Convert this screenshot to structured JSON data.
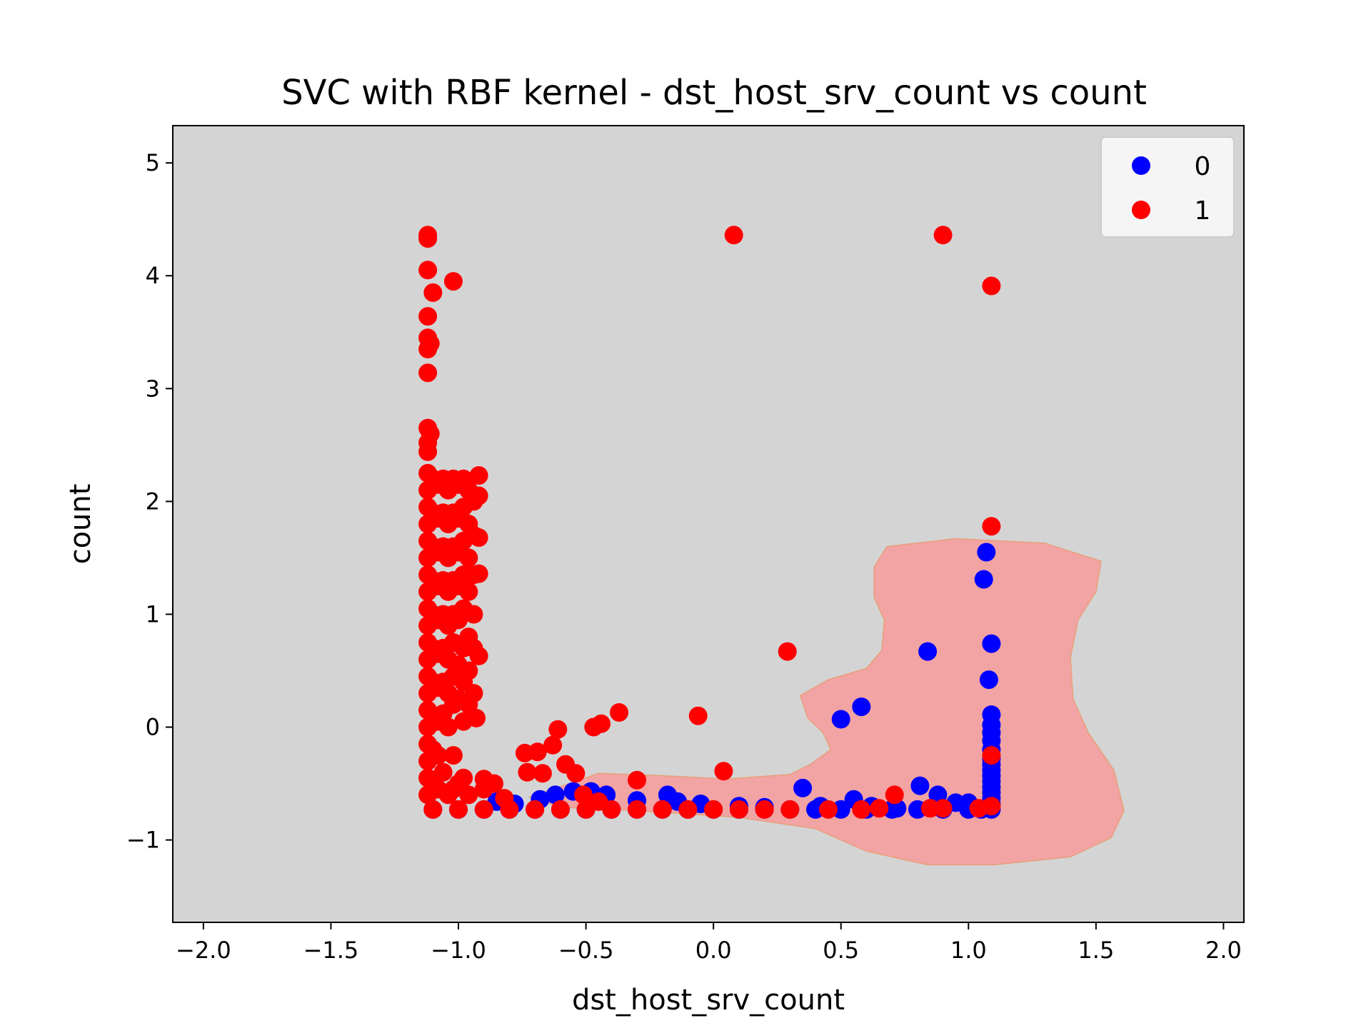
{
  "chart_data": {
    "type": "scatter",
    "title": "SVC with RBF kernel - dst_host_srv_count vs count",
    "xlabel": "dst_host_srv_count",
    "ylabel": "count",
    "xlim": [
      -2.12,
      2.08
    ],
    "ylim": [
      -1.73,
      5.33
    ],
    "xticks": [
      -2.0,
      -1.5,
      -1.0,
      -0.5,
      0.0,
      0.5,
      1.0,
      1.5,
      2.0
    ],
    "xtick_labels": [
      "−2.0",
      "−1.5",
      "−1.0",
      "−0.5",
      "0.0",
      "0.5",
      "1.0",
      "1.5",
      "2.0"
    ],
    "yticks": [
      -1,
      0,
      1,
      2,
      3,
      4,
      5
    ],
    "ytick_labels": [
      "−1",
      "0",
      "1",
      "2",
      "3",
      "4",
      "5"
    ],
    "grid": false,
    "legend": "top-right",
    "colors": {
      "background": "#d4d4d4",
      "region": "#f2a3a3",
      "class0": "#0000ff",
      "class1": "#ff0000"
    },
    "decision_region": {
      "label": "predicted class 1",
      "polygon": [
        [
          -0.72,
          -0.62
        ],
        [
          -0.45,
          -0.41
        ],
        [
          -0.2,
          -0.43
        ],
        [
          0.05,
          -0.46
        ],
        [
          0.3,
          -0.42
        ],
        [
          0.38,
          -0.33
        ],
        [
          0.46,
          -0.2
        ],
        [
          0.43,
          -0.05
        ],
        [
          0.37,
          0.08
        ],
        [
          0.34,
          0.28
        ],
        [
          0.45,
          0.42
        ],
        [
          0.6,
          0.52
        ],
        [
          0.66,
          0.68
        ],
        [
          0.67,
          0.95
        ],
        [
          0.63,
          1.15
        ],
        [
          0.63,
          1.42
        ],
        [
          0.68,
          1.6
        ],
        [
          0.95,
          1.67
        ],
        [
          1.3,
          1.63
        ],
        [
          1.52,
          1.47
        ],
        [
          1.5,
          1.2
        ],
        [
          1.43,
          0.95
        ],
        [
          1.4,
          0.62
        ],
        [
          1.41,
          0.25
        ],
        [
          1.47,
          -0.05
        ],
        [
          1.57,
          -0.38
        ],
        [
          1.61,
          -0.74
        ],
        [
          1.56,
          -0.98
        ],
        [
          1.4,
          -1.15
        ],
        [
          1.1,
          -1.22
        ],
        [
          0.84,
          -1.22
        ],
        [
          0.6,
          -1.1
        ],
        [
          0.4,
          -0.9
        ],
        [
          0.1,
          -0.8
        ],
        [
          -0.3,
          -0.74
        ],
        [
          -0.6,
          -0.71
        ]
      ]
    },
    "series": [
      {
        "name": "0",
        "color": "#0000ff",
        "points": [
          [
            -1.1,
            -0.73
          ],
          [
            -1.0,
            -0.73
          ],
          [
            -0.9,
            -0.73
          ],
          [
            -0.8,
            -0.73
          ],
          [
            -0.7,
            -0.73
          ],
          [
            -0.6,
            -0.73
          ],
          [
            -0.5,
            -0.73
          ],
          [
            -0.4,
            -0.73
          ],
          [
            -0.3,
            -0.73
          ],
          [
            -0.2,
            -0.73
          ],
          [
            -0.1,
            -0.73
          ],
          [
            0.0,
            -0.73
          ],
          [
            0.1,
            -0.73
          ],
          [
            0.2,
            -0.73
          ],
          [
            0.3,
            -0.73
          ],
          [
            0.4,
            -0.73
          ],
          [
            0.5,
            -0.73
          ],
          [
            0.6,
            -0.73
          ],
          [
            0.7,
            -0.73
          ],
          [
            0.8,
            -0.73
          ],
          [
            0.9,
            -0.73
          ],
          [
            1.0,
            -0.73
          ],
          [
            1.05,
            -0.73
          ],
          [
            -0.85,
            -0.66
          ],
          [
            -0.78,
            -0.68
          ],
          [
            -0.68,
            -0.64
          ],
          [
            -0.62,
            -0.6
          ],
          [
            -0.55,
            -0.57
          ],
          [
            -0.48,
            -0.57
          ],
          [
            -0.42,
            -0.6
          ],
          [
            -0.3,
            -0.65
          ],
          [
            -0.18,
            -0.6
          ],
          [
            -0.14,
            -0.66
          ],
          [
            -0.05,
            -0.68
          ],
          [
            0.1,
            -0.7
          ],
          [
            0.2,
            -0.71
          ],
          [
            0.35,
            -0.54
          ],
          [
            0.42,
            -0.7
          ],
          [
            0.55,
            -0.64
          ],
          [
            0.62,
            -0.7
          ],
          [
            0.72,
            -0.72
          ],
          [
            0.81,
            -0.52
          ],
          [
            0.88,
            -0.6
          ],
          [
            0.95,
            -0.67
          ],
          [
            1.0,
            -0.67
          ],
          [
            1.09,
            -0.73
          ],
          [
            1.09,
            -0.68
          ],
          [
            1.09,
            -0.63
          ],
          [
            1.09,
            -0.58
          ],
          [
            1.09,
            -0.53
          ],
          [
            1.09,
            -0.48
          ],
          [
            1.09,
            -0.43
          ],
          [
            1.09,
            -0.38
          ],
          [
            1.09,
            -0.33
          ],
          [
            1.09,
            -0.28
          ],
          [
            1.09,
            -0.2
          ],
          [
            1.09,
            -0.12
          ],
          [
            1.09,
            -0.05
          ],
          [
            1.09,
            0.02
          ],
          [
            1.09,
            0.11
          ],
          [
            0.5,
            0.07
          ],
          [
            0.58,
            0.18
          ],
          [
            0.84,
            0.67
          ],
          [
            1.08,
            0.42
          ],
          [
            1.09,
            0.74
          ],
          [
            1.06,
            1.31
          ],
          [
            1.07,
            1.55
          ]
        ]
      },
      {
        "name": "1",
        "color": "#ff0000",
        "points": [
          [
            -1.12,
            4.36
          ],
          [
            -1.12,
            4.33
          ],
          [
            -1.12,
            4.05
          ],
          [
            -1.02,
            3.95
          ],
          [
            -1.1,
            3.85
          ],
          [
            -1.12,
            3.64
          ],
          [
            -1.12,
            3.45
          ],
          [
            -1.11,
            3.4
          ],
          [
            -1.12,
            3.35
          ],
          [
            -1.12,
            3.14
          ],
          [
            -1.12,
            2.65
          ],
          [
            -1.11,
            2.6
          ],
          [
            -1.12,
            2.52
          ],
          [
            -1.12,
            2.44
          ],
          [
            -1.12,
            2.25
          ],
          [
            -1.12,
            2.1
          ],
          [
            -1.12,
            1.95
          ],
          [
            -1.12,
            1.8
          ],
          [
            -1.12,
            1.65
          ],
          [
            -1.12,
            1.5
          ],
          [
            -1.12,
            1.35
          ],
          [
            -1.12,
            1.2
          ],
          [
            -1.12,
            1.05
          ],
          [
            -1.12,
            0.9
          ],
          [
            -1.12,
            0.75
          ],
          [
            -1.12,
            0.6
          ],
          [
            -1.12,
            0.45
          ],
          [
            -1.12,
            0.3
          ],
          [
            -1.12,
            0.15
          ],
          [
            -1.12,
            0.0
          ],
          [
            -1.12,
            -0.15
          ],
          [
            -1.12,
            -0.3
          ],
          [
            -1.12,
            -0.45
          ],
          [
            -1.12,
            -0.6
          ],
          [
            -1.1,
            2.2
          ],
          [
            -1.1,
            1.9
          ],
          [
            -1.1,
            1.6
          ],
          [
            -1.1,
            1.3
          ],
          [
            -1.1,
            1.0
          ],
          [
            -1.1,
            0.7
          ],
          [
            -1.1,
            0.4
          ],
          [
            -1.1,
            0.1
          ],
          [
            -1.1,
            -0.2
          ],
          [
            -1.1,
            -0.5
          ],
          [
            -1.08,
            2.15
          ],
          [
            -1.08,
            1.85
          ],
          [
            -1.08,
            1.55
          ],
          [
            -1.08,
            1.25
          ],
          [
            -1.08,
            0.95
          ],
          [
            -1.08,
            0.65
          ],
          [
            -1.08,
            0.35
          ],
          [
            -1.08,
            0.05
          ],
          [
            -1.08,
            -0.25
          ],
          [
            -1.08,
            -0.55
          ],
          [
            -1.06,
            2.2
          ],
          [
            -1.06,
            1.9
          ],
          [
            -1.06,
            1.6
          ],
          [
            -1.06,
            1.3
          ],
          [
            -1.06,
            1.0
          ],
          [
            -1.06,
            0.7
          ],
          [
            -1.06,
            0.4
          ],
          [
            -1.06,
            0.12
          ],
          [
            -1.06,
            -0.4
          ],
          [
            -1.04,
            2.1
          ],
          [
            -1.04,
            1.8
          ],
          [
            -1.04,
            1.5
          ],
          [
            -1.04,
            1.2
          ],
          [
            -1.04,
            0.9
          ],
          [
            -1.04,
            0.6
          ],
          [
            -1.04,
            0.3
          ],
          [
            -1.04,
            0.0
          ],
          [
            -1.04,
            -0.6
          ],
          [
            -1.02,
            2.2
          ],
          [
            -1.02,
            1.9
          ],
          [
            -1.02,
            1.6
          ],
          [
            -1.02,
            1.3
          ],
          [
            -1.02,
            1.0
          ],
          [
            -1.02,
            0.75
          ],
          [
            -1.02,
            0.45
          ],
          [
            -1.02,
            0.2
          ],
          [
            -1.02,
            -0.25
          ],
          [
            -1.02,
            -0.55
          ],
          [
            -1.0,
            2.15
          ],
          [
            -1.0,
            1.85
          ],
          [
            -1.0,
            1.55
          ],
          [
            -1.0,
            1.25
          ],
          [
            -1.0,
            0.95
          ],
          [
            -1.0,
            0.55
          ],
          [
            -1.0,
            0.25
          ],
          [
            -1.0,
            -0.5
          ],
          [
            -0.98,
            2.2
          ],
          [
            -0.98,
            1.95
          ],
          [
            -0.98,
            1.65
          ],
          [
            -0.98,
            1.35
          ],
          [
            -0.98,
            1.05
          ],
          [
            -0.98,
            0.7
          ],
          [
            -0.98,
            0.4
          ],
          [
            -0.98,
            0.05
          ],
          [
            -0.98,
            -0.45
          ],
          [
            -0.96,
            2.1
          ],
          [
            -0.96,
            1.8
          ],
          [
            -0.96,
            1.5
          ],
          [
            -0.96,
            1.2
          ],
          [
            -0.96,
            0.8
          ],
          [
            -0.96,
            0.5
          ],
          [
            -0.96,
            0.2
          ],
          [
            -0.96,
            -0.6
          ],
          [
            -0.94,
            2.0
          ],
          [
            -0.94,
            1.7
          ],
          [
            -0.94,
            1.35
          ],
          [
            -0.94,
            1.0
          ],
          [
            -0.94,
            0.7
          ],
          [
            -0.94,
            0.3
          ],
          [
            -0.93,
            0.08
          ],
          [
            -0.92,
            2.23
          ],
          [
            -0.92,
            2.05
          ],
          [
            -0.92,
            1.68
          ],
          [
            -0.92,
            1.36
          ],
          [
            -0.92,
            0.63
          ],
          [
            -0.9,
            -0.55
          ],
          [
            -0.86,
            -0.5
          ],
          [
            -0.9,
            -0.46
          ],
          [
            -0.82,
            -0.63
          ],
          [
            -0.74,
            -0.23
          ],
          [
            -0.73,
            -0.4
          ],
          [
            -0.69,
            -0.22
          ],
          [
            -0.67,
            -0.41
          ],
          [
            -0.63,
            -0.16
          ],
          [
            -0.61,
            -0.02
          ],
          [
            -0.58,
            -0.33
          ],
          [
            -0.54,
            -0.41
          ],
          [
            -0.51,
            -0.6
          ],
          [
            -0.47,
            0.0
          ],
          [
            -0.44,
            0.03
          ],
          [
            -0.37,
            0.13
          ],
          [
            -0.3,
            -0.47
          ],
          [
            -0.06,
            0.1
          ],
          [
            0.04,
            -0.39
          ],
          [
            0.08,
            4.36
          ],
          [
            0.9,
            4.36
          ],
          [
            1.09,
            3.91
          ],
          [
            0.29,
            0.67
          ],
          [
            1.09,
            1.78
          ],
          [
            1.09,
            -0.25
          ],
          [
            0.71,
            -0.6
          ],
          [
            0.65,
            -0.72
          ],
          [
            0.58,
            -0.73
          ],
          [
            0.85,
            -0.72
          ],
          [
            0.9,
            -0.72
          ],
          [
            1.04,
            -0.72
          ],
          [
            1.09,
            -0.7
          ],
          [
            -1.1,
            -0.73
          ],
          [
            -1.0,
            -0.73
          ],
          [
            -0.9,
            -0.73
          ],
          [
            -0.8,
            -0.73
          ],
          [
            -0.7,
            -0.73
          ],
          [
            -0.6,
            -0.73
          ],
          [
            -0.5,
            -0.73
          ],
          [
            -0.45,
            -0.66
          ],
          [
            -0.4,
            -0.73
          ],
          [
            -0.3,
            -0.73
          ],
          [
            -0.2,
            -0.73
          ],
          [
            -0.1,
            -0.73
          ],
          [
            0.0,
            -0.73
          ],
          [
            0.1,
            -0.73
          ],
          [
            0.2,
            -0.73
          ],
          [
            0.3,
            -0.73
          ],
          [
            0.45,
            -0.73
          ]
        ]
      }
    ]
  }
}
